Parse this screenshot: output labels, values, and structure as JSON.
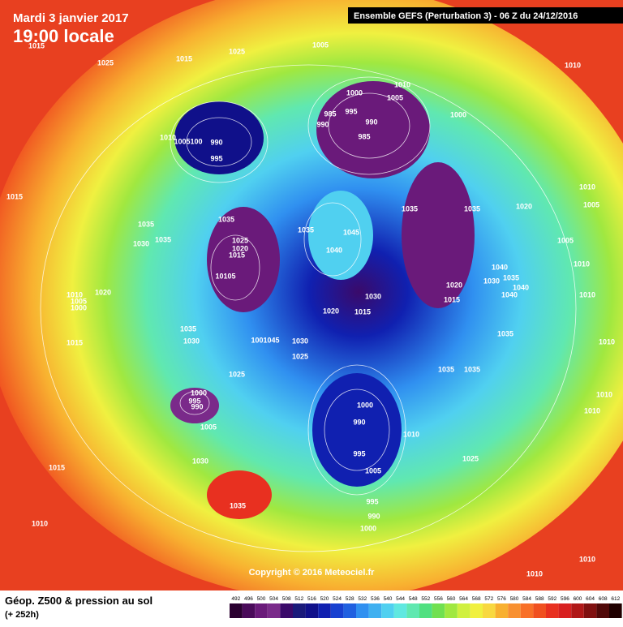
{
  "header": {
    "date": "Mardi 3 janvier 2017",
    "time": "19:00 locale",
    "model": "Ensemble GEFS  (Perturbation 3)  -  06 Z du 24/12/2016"
  },
  "footer": {
    "title": "Géop. Z500 & pression au sol",
    "lead": "(+ 252h)",
    "copyright": "Copyright © 2016 Meteociel.fr"
  },
  "scale": {
    "ticks": [
      "492",
      "496",
      "500",
      "504",
      "508",
      "512",
      "516",
      "520",
      "524",
      "528",
      "532",
      "536",
      "540",
      "544",
      "548",
      "552",
      "556",
      "560",
      "564",
      "568",
      "572",
      "576",
      "580",
      "584",
      "588",
      "592",
      "596",
      "600",
      "604",
      "608",
      "612"
    ],
    "colors": [
      "#2a0030",
      "#4a0a5a",
      "#6a1a7a",
      "#7a2a8a",
      "#3a0a6a",
      "#1a1a7a",
      "#10108a",
      "#1020b0",
      "#1840d0",
      "#2060e0",
      "#3090f0",
      "#40b0f0",
      "#50d0f0",
      "#60e8e0",
      "#60e8b0",
      "#50e080",
      "#70e050",
      "#a0e840",
      "#d0f040",
      "#f0f040",
      "#f8d840",
      "#f8b030",
      "#f89030",
      "#f87028",
      "#f05020",
      "#e83020",
      "#d82020",
      "#b01818",
      "#801010",
      "#500808",
      "#200000"
    ]
  },
  "isobars": [
    "1015",
    "1025",
    "1015",
    "1025",
    "1005",
    "1010",
    "1000",
    "1005",
    "1010",
    "995",
    "985",
    "990",
    "990",
    "985",
    "1000",
    "990",
    "995",
    "1010",
    "1005100",
    "1015",
    "1035",
    "1030",
    "1035",
    "1035",
    "1025",
    "1020",
    "1015",
    "10105",
    "1035",
    "1045",
    "1040",
    "1035",
    "1035",
    "1020",
    "1010",
    "1005",
    "1005",
    "1010",
    "1040",
    "1035",
    "1030",
    "1040",
    "1040",
    "1020",
    "1015",
    "1010",
    "1005",
    "1000",
    "1020",
    "1010",
    "1020",
    "1015",
    "1030",
    "1035",
    "1030",
    "1001045",
    "1030",
    "1025",
    "1035",
    "1010",
    "1015",
    "1035",
    "1035",
    "1025",
    "1010",
    "1010",
    "1000",
    "995",
    "990",
    "1005",
    "1000",
    "990",
    "1010",
    "995",
    "1025",
    "1005",
    "1015",
    "1030",
    "1035",
    "995",
    "990",
    "1000",
    "1010",
    "1010",
    "1010"
  ]
}
